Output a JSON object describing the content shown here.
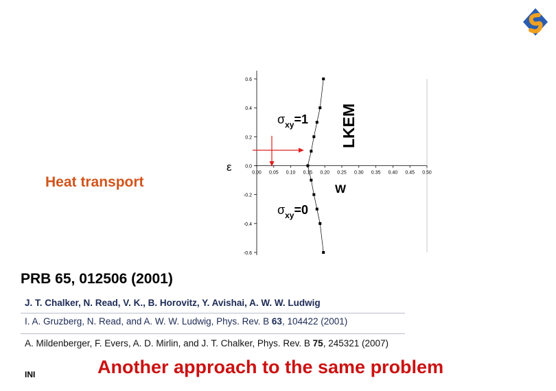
{
  "labels": {
    "heat_transport": "Heat transport",
    "epsilon_symbol": "ε",
    "sigma_xy_1_sigma": "σ",
    "sigma_xy_1_sub": "xy",
    "sigma_xy_1_val": "=1",
    "sigma_xy_0_sigma": "σ",
    "sigma_xy_0_sub": "xy",
    "sigma_xy_0_val": "=0",
    "w_axis": "W",
    "rotated_label": "LKEM"
  },
  "chart_data": {
    "type": "scatter",
    "xlabel": "W",
    "ylabel": "ε",
    "xlim": [
      0,
      0.5
    ],
    "ylim": [
      -0.6,
      0.6
    ],
    "x_ticks": [
      "0.00",
      "0.05",
      "0.10",
      "0.15",
      "0.20",
      "0.25",
      "0.30",
      "0.35",
      "0.40",
      "0.45",
      "0.50"
    ],
    "y_ticks": [
      "0.6",
      "0.4",
      "0.2",
      "0.0",
      "-0.2",
      "-0.4",
      "-0.6"
    ],
    "series": [
      {
        "x": [
          0.196,
          0.186,
          0.177,
          0.168,
          0.16,
          0.15,
          0.16,
          0.168,
          0.177,
          0.186,
          0.196
        ],
        "y": [
          0.6,
          0.4,
          0.3,
          0.2,
          0.1,
          0.0,
          -0.1,
          -0.2,
          -0.3,
          -0.4,
          -0.6
        ]
      }
    ],
    "annotations": [
      {
        "text": "σxy=1",
        "x": 0.13,
        "y": 0.34
      },
      {
        "text": "σxy=0",
        "x": 0.13,
        "y": -0.32
      }
    ],
    "arrows_color": "#e02020"
  },
  "references": {
    "prb": "PRB 65, 012506 (2001)",
    "authors": "J. T. Chalker, N. Read, V. K., B. Horovitz, Y. Avishai, A. W. W. Ludwig",
    "ref2_pre": "I. A. Gruzberg, N. Read, and A. W. W. Ludwig, Phys. Rev. B ",
    "ref2_vol": "63",
    "ref2_post": ", 104422 (2001)",
    "ref3_pre": "A. Mildenberger, F. Evers, A. D. Mirlin, and J. T. Chalker, Phys. Rev. B ",
    "ref3_vol": "75",
    "ref3_post": ", 245321 (2007)"
  },
  "footer": {
    "ini": "INI",
    "another": "Another approach to the same problem"
  },
  "colors": {
    "heat": "#d2541a",
    "red": "#cc1111",
    "ref_blue": "#1c2a55",
    "logo_blue": "#2a5db0",
    "logo_orange": "#f0a020"
  }
}
